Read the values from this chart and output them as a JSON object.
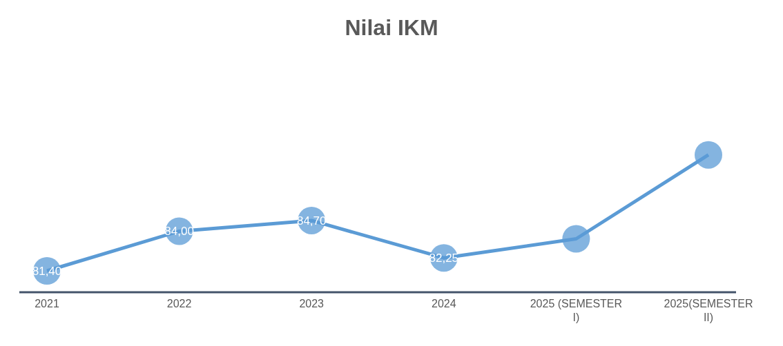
{
  "chart_data": {
    "type": "line",
    "title": "Nilai IKM",
    "categories": [
      "2021",
      "2022",
      "2023",
      "2024",
      "2025 (SEMESTER I)",
      "2025(SEMESTER II)"
    ],
    "series": [
      {
        "color": "#5b9bd5",
        "values": [
          81.4,
          84.0,
          84.7,
          82.25,
          83.5,
          89.0
        ],
        "value_labels": [
          "81,40",
          "84,00",
          "84,70",
          "82,25",
          null,
          null
        ]
      }
    ],
    "tick_labels": "x",
    "marker": "circle",
    "line_style": "solid"
  }
}
